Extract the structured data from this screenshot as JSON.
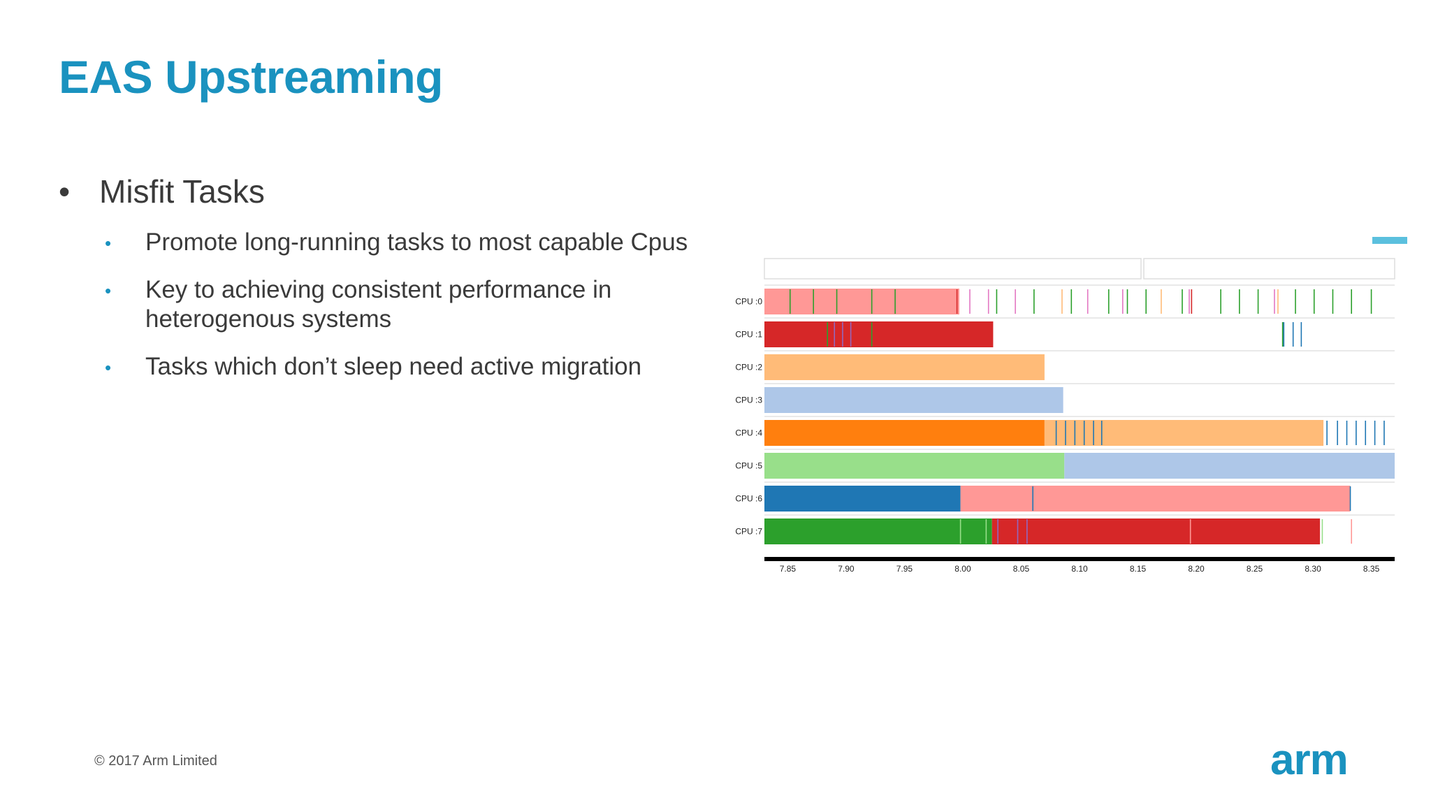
{
  "slide": {
    "title": "EAS Upstreaming",
    "bullet": "Misfit Tasks",
    "sub_bullets": [
      "Promote long-running tasks to most capable Cpus",
      "Key to achieving consistent performance in heterogenous systems",
      "Tasks which don’t sleep need active migration"
    ],
    "footer": "© 2017 Arm Limited",
    "logo_text": "arm"
  },
  "colors": {
    "title": "#1a92bf",
    "accent": "#1a92bf",
    "body_text": "#3a3a3a"
  },
  "chart_data": {
    "type": "bar",
    "subtype": "per-cpu task timeline",
    "rows": [
      "CPU :0",
      "CPU :1",
      "CPU :2",
      "CPU :3",
      "CPU :4",
      "CPU :5",
      "CPU :6",
      "CPU :7"
    ],
    "x_ticks": [
      "7.85",
      "7.90",
      "7.95",
      "8.00",
      "8.05",
      "8.10",
      "8.15",
      "8.20",
      "8.25",
      "8.30",
      "8.35"
    ],
    "xlim": [
      7.83,
      8.37
    ],
    "grid": false,
    "legend": "none",
    "segments": [
      {
        "row": 0,
        "start": 7.83,
        "end": 7.997,
        "color": "#ff9896"
      },
      {
        "row": 1,
        "start": 7.83,
        "end": 8.026,
        "color": "#d62728"
      },
      {
        "row": 2,
        "start": 7.83,
        "end": 8.07,
        "color": "#ffbb78"
      },
      {
        "row": 3,
        "start": 7.83,
        "end": 8.086,
        "color": "#aec7e8"
      },
      {
        "row": 4,
        "start": 7.83,
        "end": 8.07,
        "color": "#ff7f0e"
      },
      {
        "row": 4,
        "start": 8.07,
        "end": 8.309,
        "color": "#ffbb78"
      },
      {
        "row": 5,
        "start": 7.83,
        "end": 8.087,
        "color": "#98df8a"
      },
      {
        "row": 5,
        "start": 8.087,
        "end": 8.37,
        "color": "#aec7e8"
      },
      {
        "row": 6,
        "start": 7.83,
        "end": 7.998,
        "color": "#1f77b4"
      },
      {
        "row": 6,
        "start": 7.998,
        "end": 8.332,
        "color": "#ff9896"
      },
      {
        "row": 7,
        "start": 7.83,
        "end": 8.025,
        "color": "#2ca02c"
      },
      {
        "row": 7,
        "start": 8.025,
        "end": 8.306,
        "color": "#d62728"
      }
    ],
    "events": [
      {
        "row": 0,
        "color": "#2ca02c",
        "x": [
          7.852,
          7.872,
          7.892,
          7.922,
          7.942,
          8.029,
          8.061,
          8.093,
          8.125,
          8.141,
          8.157,
          8.188,
          8.221,
          8.237,
          8.253,
          8.285,
          8.301,
          8.317,
          8.333,
          8.35
        ]
      },
      {
        "row": 0,
        "color": "#e377c2",
        "x": [
          8.006,
          8.022,
          8.045,
          8.107,
          8.137,
          8.194,
          8.267
        ]
      },
      {
        "row": 0,
        "color": "#ffbb78",
        "x": [
          8.085,
          8.17,
          8.27
        ]
      },
      {
        "row": 0,
        "color": "#d62728",
        "x": [
          7.995,
          8.196
        ]
      },
      {
        "row": 1,
        "color": "#2ca02c",
        "x": [
          7.884,
          7.922,
          8.274
        ]
      },
      {
        "row": 1,
        "color": "#9467bd",
        "x": [
          7.89,
          7.897,
          7.904
        ]
      },
      {
        "row": 1,
        "color": "#1f77b4",
        "x": [
          8.275,
          8.283,
          8.29
        ]
      },
      {
        "row": 4,
        "color": "#1f77b4",
        "x": [
          8.08,
          8.088,
          8.096,
          8.104,
          8.112,
          8.119,
          8.312,
          8.321,
          8.329,
          8.337,
          8.345,
          8.353,
          8.361
        ]
      },
      {
        "row": 6,
        "color": "#1f77b4",
        "x": [
          8.06,
          8.332
        ]
      },
      {
        "row": 7,
        "color": "#98df8a",
        "x": [
          7.998,
          8.02,
          8.308
        ]
      },
      {
        "row": 7,
        "color": "#9467bd",
        "x": [
          8.03,
          8.047,
          8.055
        ]
      },
      {
        "row": 7,
        "color": "#ff9896",
        "x": [
          8.195,
          8.333
        ]
      }
    ]
  }
}
